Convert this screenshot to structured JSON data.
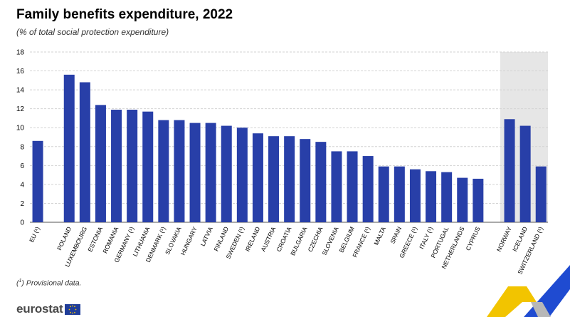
{
  "title": "Family benefits expenditure, 2022",
  "subtitle": "(% of total social protection expenditure)",
  "footnote": {
    "mark": "1",
    "text": " Provisional data."
  },
  "logo_text": "eurostat",
  "colors": {
    "bar": "#283fa8",
    "grid": "#d3d3d3",
    "nonEU_bg": "#e6e6e6",
    "text": "#000000",
    "accent_yellow": "#f2c400",
    "accent_blue": "#1f4bd1"
  },
  "chart_data": {
    "type": "bar",
    "title": "Family benefits expenditure, 2022",
    "subtitle": "(% of total social protection expenditure)",
    "xlabel": "",
    "ylabel": "",
    "ylim": [
      0,
      18
    ],
    "yticks": [
      0,
      2,
      4,
      6,
      8,
      10,
      12,
      14,
      16,
      18
    ],
    "grid": true,
    "legend": "none",
    "groups": [
      {
        "categories": [
          "EU (¹)"
        ],
        "values": [
          8.6
        ],
        "shaded": false
      },
      {
        "categories": [
          "POLAND",
          "LUXEMBOURG",
          "ESTONIA",
          "ROMANIA",
          "GERMANY (¹)",
          "LITHUANIA",
          "DENMARK (¹)",
          "SLOVAKIA",
          "HUNGARY",
          "LATVIA",
          "FINLAND",
          "SWEDEN (¹)",
          "IRELAND",
          "AUSTRIA",
          "CROATIA",
          "BULGARIA",
          "CZECHIA",
          "SLOVENIA",
          "BELGIUM",
          "FRANCE (¹)",
          "MALTA",
          "SPAIN",
          "GREECE (¹)",
          "ITALY (¹)",
          "PORTUGAL",
          "NETHERLANDS",
          "CYPRUS"
        ],
        "values": [
          15.6,
          14.8,
          12.4,
          11.9,
          11.9,
          11.7,
          10.8,
          10.8,
          10.5,
          10.5,
          10.2,
          10.0,
          9.4,
          9.1,
          9.1,
          8.8,
          8.5,
          7.5,
          7.5,
          7.0,
          5.9,
          5.9,
          5.6,
          5.4,
          5.3,
          4.7,
          4.6
        ],
        "shaded": false
      },
      {
        "categories": [
          "NORWAY",
          "ICELAND",
          "SWITZERLAND (¹)"
        ],
        "values": [
          10.9,
          10.2,
          5.9
        ],
        "shaded": true
      }
    ]
  }
}
